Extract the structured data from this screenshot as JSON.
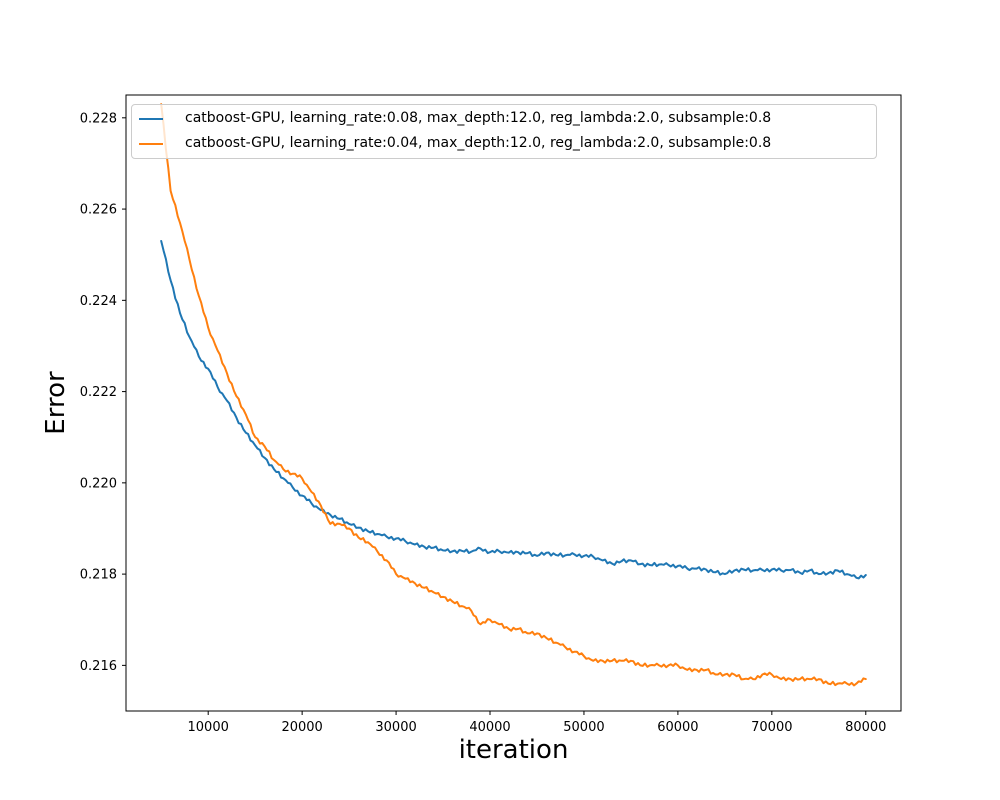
{
  "figure": {
    "background": "#ffffff",
    "spine_color": "#000000",
    "tick_color": "#000000",
    "text_color": "#000000"
  },
  "chart_data": {
    "type": "line",
    "title": "",
    "xlabel": "iteration",
    "ylabel": "Error",
    "grid": false,
    "legend_position": "upper-left",
    "xlim": [
      1250,
      83750
    ],
    "ylim": [
      0.215,
      0.2285
    ],
    "xticks": [
      10000,
      20000,
      30000,
      40000,
      50000,
      60000,
      70000,
      80000
    ],
    "yticks": [
      0.216,
      0.218,
      0.22,
      0.222,
      0.224,
      0.226,
      0.228
    ],
    "ytick_decimals": 3,
    "noise_amplitude": 4e-05,
    "x": [
      5000,
      6000,
      7000,
      8000,
      9000,
      10000,
      11000,
      12000,
      13000,
      14000,
      15000,
      16000,
      17000,
      18000,
      19000,
      20000,
      21000,
      22000,
      23000,
      24000,
      25000,
      26000,
      27000,
      28000,
      29000,
      30000,
      31000,
      32000,
      33000,
      34000,
      35000,
      36000,
      37000,
      38000,
      39000,
      40000,
      41000,
      42000,
      43000,
      44000,
      45000,
      46000,
      47000,
      48000,
      49000,
      50000,
      51000,
      52000,
      53000,
      54000,
      55000,
      56000,
      57000,
      58000,
      59000,
      60000,
      61000,
      62000,
      63000,
      64000,
      65000,
      66000,
      67000,
      68000,
      69000,
      70000,
      71000,
      72000,
      73000,
      74000,
      75000,
      76000,
      77000,
      78000,
      79000,
      80000
    ],
    "series": [
      {
        "name": "catboost-GPU, learning_rate:0.08, max_depth:12.0, reg_lambda:2.0, subsample:0.8",
        "color": "#1f77b4",
        "values": [
          0.2253,
          0.22444,
          0.22372,
          0.2232,
          0.22277,
          0.2225,
          0.2221,
          0.2218,
          0.22143,
          0.2211,
          0.22082,
          0.22055,
          0.2203,
          0.2201,
          0.2199,
          0.21972,
          0.21955,
          0.2194,
          0.2193,
          0.21921,
          0.2191,
          0.21902,
          0.21894,
          0.21888,
          0.21882,
          0.21878,
          0.21872,
          0.21865,
          0.2186,
          0.21858,
          0.21852,
          0.2185,
          0.21851,
          0.21849,
          0.21856,
          0.21848,
          0.2185,
          0.21847,
          0.21848,
          0.21846,
          0.2184,
          0.21847,
          0.21842,
          0.21841,
          0.21843,
          0.2184,
          0.21838,
          0.2183,
          0.21823,
          0.21828,
          0.2183,
          0.21822,
          0.2182,
          0.21821,
          0.2182,
          0.21818,
          0.21812,
          0.21812,
          0.2181,
          0.21804,
          0.218,
          0.21808,
          0.2181,
          0.21808,
          0.21809,
          0.2181,
          0.21808,
          0.21809,
          0.21803,
          0.21808,
          0.218,
          0.21802,
          0.21808,
          0.218,
          0.21792,
          0.21798
        ]
      },
      {
        "name": "catboost-GPU, learning_rate:0.04, max_depth:12.0, reg_lambda:2.0, subsample:0.8",
        "color": "#ff7f0e",
        "values": [
          0.2283,
          0.2264,
          0.2257,
          0.2249,
          0.2241,
          0.2234,
          0.2229,
          0.2224,
          0.2219,
          0.2215,
          0.221,
          0.2208,
          0.2205,
          0.2203,
          0.2202,
          0.2201,
          0.2198,
          0.2195,
          0.2191,
          0.2191,
          0.219,
          0.2188,
          0.2187,
          0.2185,
          0.2183,
          0.218,
          0.2179,
          0.2178,
          0.2177,
          0.2176,
          0.2175,
          0.2174,
          0.2173,
          0.2172,
          0.2169,
          0.217,
          0.2169,
          0.2168,
          0.2168,
          0.2167,
          0.2167,
          0.2166,
          0.2165,
          0.2164,
          0.2163,
          0.2162,
          0.2161,
          0.2161,
          0.2161,
          0.2161,
          0.2161,
          0.216,
          0.216,
          0.216,
          0.216,
          0.216,
          0.2159,
          0.2159,
          0.2159,
          0.2158,
          0.2158,
          0.2158,
          0.2157,
          0.2157,
          0.2158,
          0.2158,
          0.2157,
          0.2157,
          0.2157,
          0.2157,
          0.2157,
          0.2156,
          0.2156,
          0.2156,
          0.2156,
          0.2157
        ]
      }
    ]
  }
}
